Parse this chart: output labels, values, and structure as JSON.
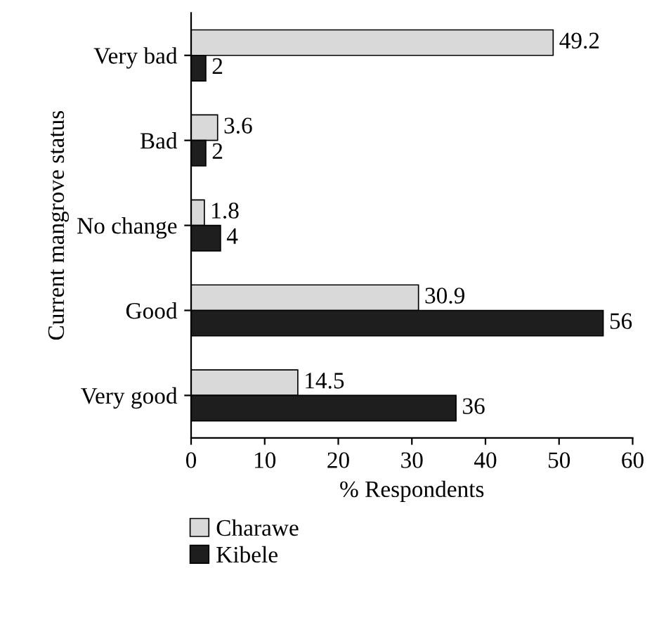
{
  "chart_data": {
    "type": "bar",
    "orientation": "horizontal",
    "xlabel": "% Respondents",
    "ylabel": "Current mangrove status",
    "categories": [
      "Very bad",
      "Bad",
      "No change",
      "Good",
      "Very good"
    ],
    "series": [
      {
        "name": "Charawe",
        "color": "#d9d9d9",
        "values": [
          49.2,
          3.6,
          1.8,
          30.9,
          14.5
        ]
      },
      {
        "name": "Kibele",
        "color": "#1e1e1e",
        "values": [
          2,
          2,
          4,
          56,
          36
        ]
      }
    ],
    "xlim": [
      0,
      60
    ],
    "xticks": [
      0,
      10,
      20,
      30,
      40,
      50,
      60
    ],
    "data_labels": true,
    "grid": false,
    "legend": "bottom"
  }
}
